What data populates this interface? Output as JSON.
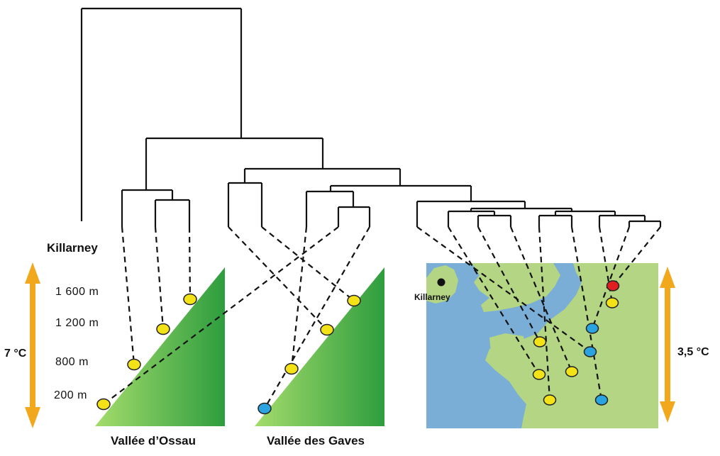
{
  "labels": {
    "killarney_title": "Killarney",
    "killarney_map": "Killarney",
    "valley_ossau": "Vallée d’Ossau",
    "valley_gaves": "Vallée des Gaves",
    "temp_left": "7 °C",
    "temp_right": "3,5 °C"
  },
  "elevations": [
    "1 600 m",
    "1 200 m",
    "800 m",
    "200 m"
  ],
  "colors": {
    "tree": "#111111",
    "yellow": "#f2e217",
    "blue": "#2aa3e0",
    "red": "#e02020",
    "arrow": "#f2a81c",
    "triangle_light": "#8ed35e",
    "triangle_dark": "#2ea043",
    "sea": "#7aaed6",
    "land": "#b4d583"
  }
}
